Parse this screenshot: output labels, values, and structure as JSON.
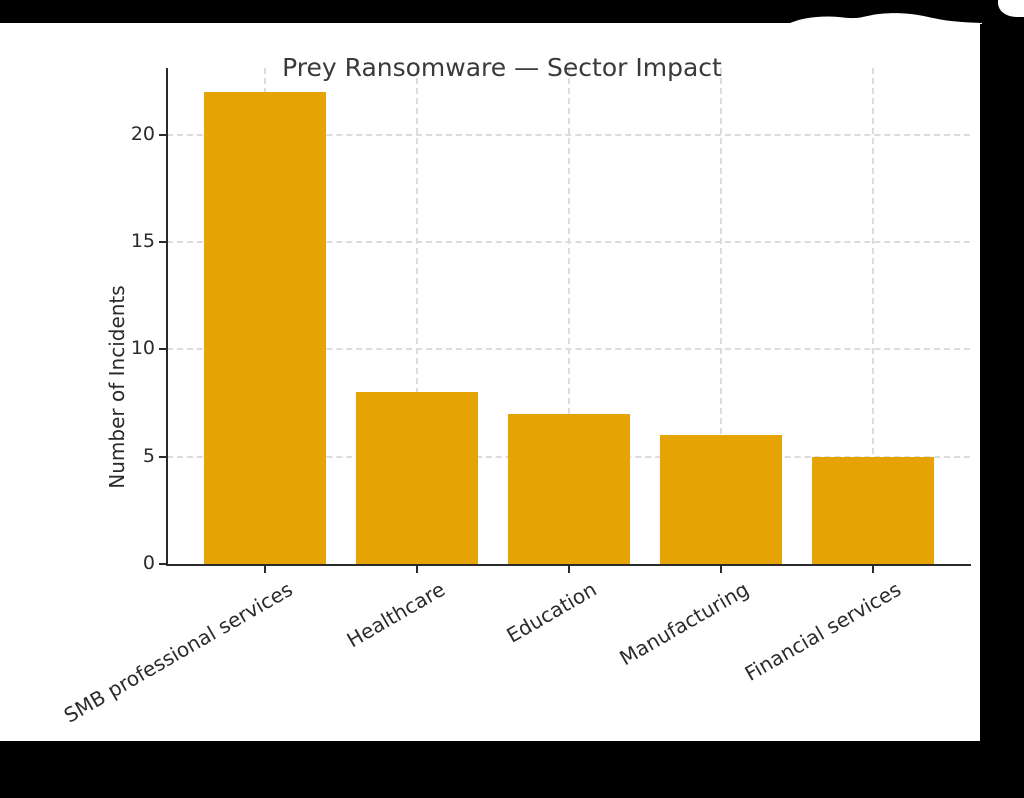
{
  "chart_data": {
    "type": "bar",
    "title": "Prey Ransomware — Sector Impact",
    "categories": [
      "SMB professional services",
      "Healthcare",
      "Education",
      "Manufacturing",
      "Financial services"
    ],
    "values": [
      22,
      8,
      7,
      6,
      5
    ],
    "xlabel": "",
    "ylabel": "Number of Incidents",
    "yticks": [
      0,
      5,
      10,
      15,
      20
    ],
    "ylim": [
      0,
      23.1
    ],
    "grid": "dashed-both-axes",
    "legend": "none",
    "bar_color": "#E6A305"
  },
  "colors": {
    "background": "#000000",
    "figure_background": "#ffffff",
    "bar": "#E6A305",
    "gridline": "#dcdcdc",
    "spine": "#2a2a2a",
    "text": "#2b2b2b",
    "title_text": "#3a3a3a"
  }
}
